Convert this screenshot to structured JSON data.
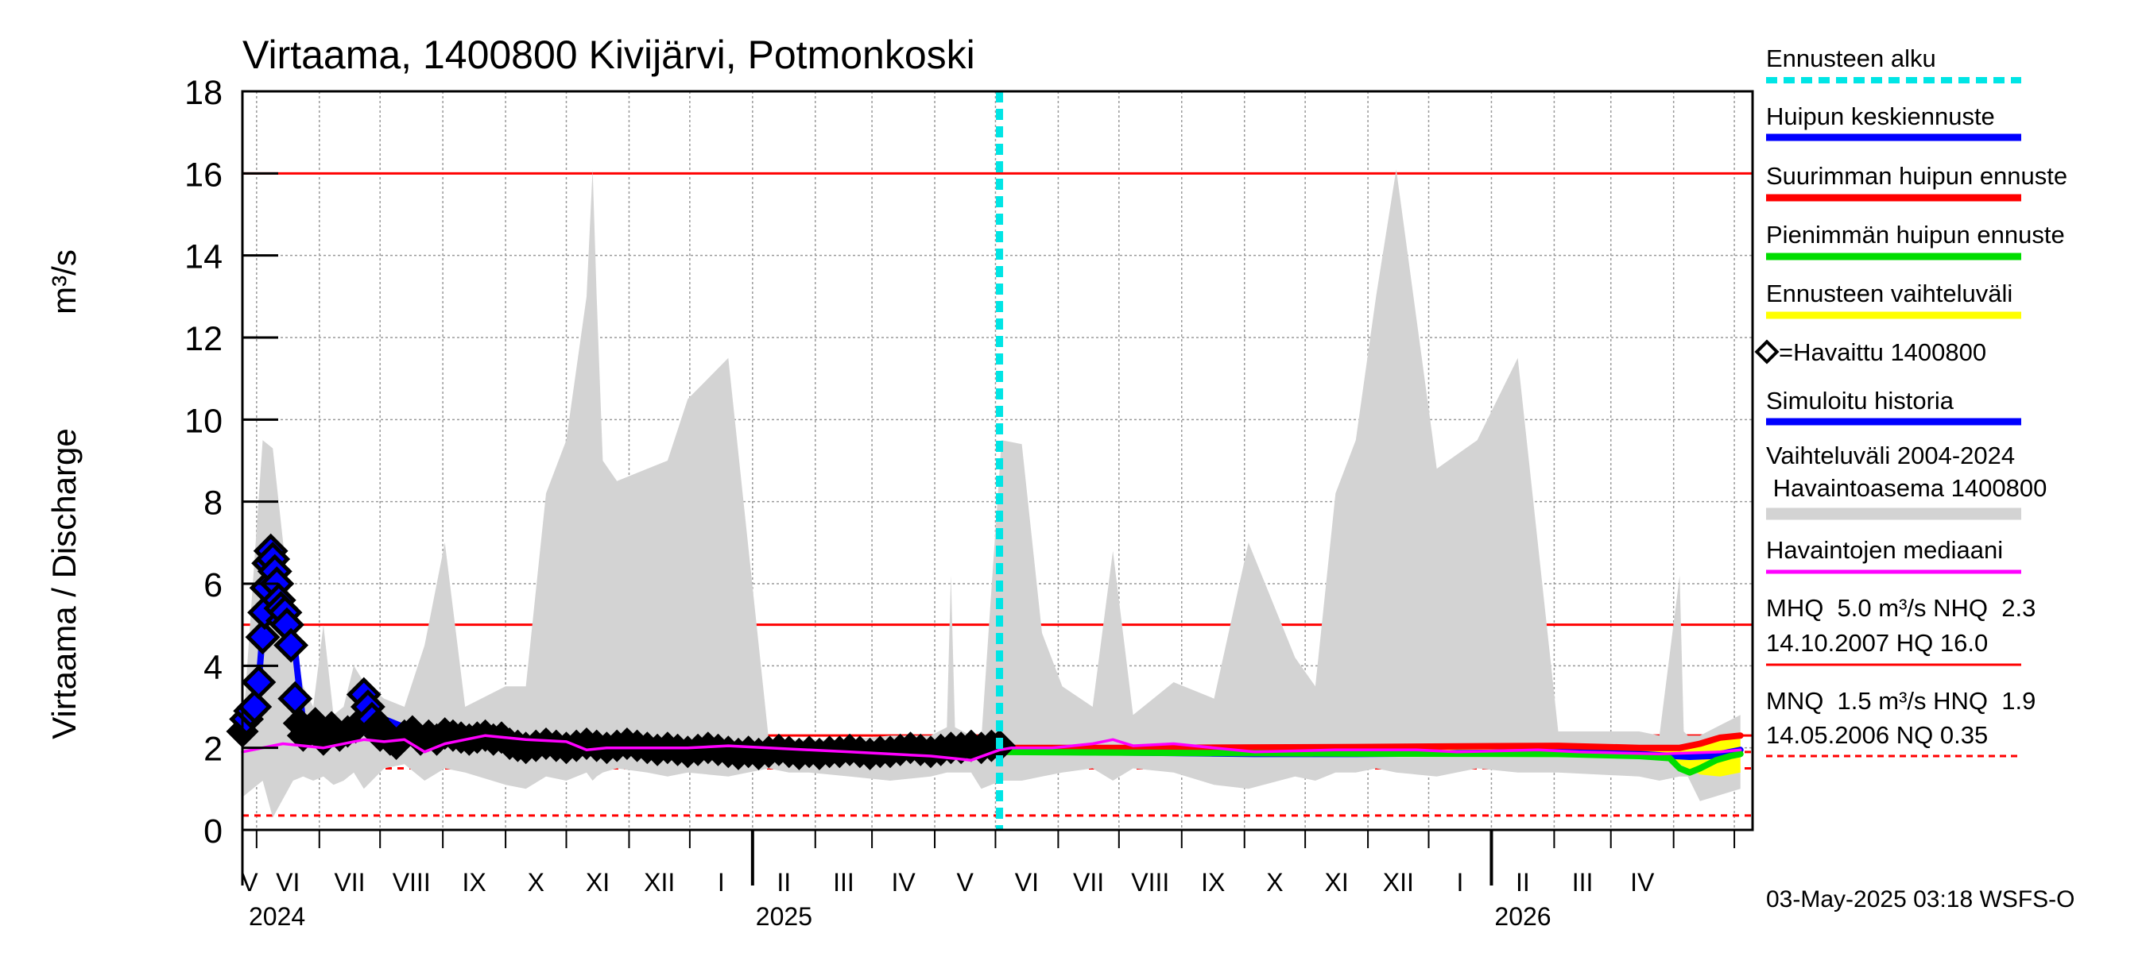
{
  "chart_data": {
    "type": "line",
    "title": "Virtaama, 1400800 Kivijärvi, Potmonkoski",
    "ylabel": "Virtaama / Discharge",
    "yunit": "m³/s",
    "ylim": [
      0,
      18
    ],
    "yticks": [
      "0",
      "2",
      "4",
      "6",
      "8",
      "10",
      "12",
      "14",
      "16",
      "18"
    ],
    "x_start": "2024-04-24",
    "x_end": "2026-05-10",
    "months": [
      "V",
      "VI",
      "VII",
      "VIII",
      "IX",
      "X",
      "XI",
      "XII",
      "I",
      "II",
      "III",
      "IV",
      "V",
      "VI",
      "VII",
      "VIII",
      "IX",
      "X",
      "XI",
      "XII",
      "I",
      "II",
      "III",
      "IV"
    ],
    "years": [
      "2024",
      "2025",
      "2026"
    ],
    "forecast_start": "2025-05-03",
    "reference_lines": {
      "HQ": 16.0,
      "MHQ": 5.0,
      "NHQ": 2.3,
      "HNQ": 1.9,
      "MNQ": 1.5,
      "NQ": 0.35
    },
    "series": [
      {
        "name": "Vaihteluväli 2004-2024 Havaintoasema 1400800",
        "kind": "band",
        "color": "#d3d3d3",
        "x_days": [
          0,
          10,
          15,
          25,
          30,
          35,
          40,
          45,
          50,
          55,
          60,
          70,
          80,
          90,
          100,
          110,
          130,
          140,
          150,
          160,
          170,
          173,
          175,
          178,
          185,
          200,
          210,
          220,
          240,
          260,
          270,
          280,
          300,
          320,
          340,
          348,
          350,
          352,
          360,
          365,
          375,
          385,
          395,
          405,
          420,
          430,
          440,
          460,
          480,
          497,
          520,
          530,
          540,
          550,
          560,
          570,
          590,
          610,
          630,
          650,
          690,
          700,
          710,
          712,
          714,
          720,
          740
        ],
        "upper": [
          2.3,
          9.5,
          9.3,
          4.8,
          3.5,
          3.0,
          5.0,
          2.8,
          3.0,
          4.0,
          3.6,
          3.2,
          3.0,
          4.5,
          7.0,
          3.0,
          3.5,
          3.5,
          8.2,
          9.5,
          13,
          16.1,
          13,
          9,
          8.5,
          8.8,
          9,
          10.5,
          11.5,
          2.2,
          2.2,
          2.2,
          2.2,
          2.3,
          2.3,
          2.5,
          6.2,
          2.5,
          2.3,
          2.2,
          9.5,
          9.4,
          4.8,
          3.5,
          3.0,
          6.8,
          2.8,
          3.6,
          3.2,
          7.0,
          4.2,
          3.5,
          8.2,
          9.5,
          13,
          16.1,
          8.8,
          9.5,
          11.5,
          2.4,
          2.4,
          2.3,
          6.2,
          2.4,
          2.3,
          2.3,
          2.8
        ],
        "lower": [
          0.8,
          1.2,
          0.3,
          1.2,
          1.3,
          1.2,
          1.3,
          1.1,
          1.2,
          1.4,
          1.0,
          1.5,
          1.6,
          1.2,
          1.5,
          1.4,
          1.1,
          1.0,
          1.3,
          1.2,
          1.4,
          1.2,
          1.3,
          1.4,
          1.5,
          1.4,
          1.3,
          1.4,
          1.3,
          1.5,
          1.4,
          1.4,
          1.3,
          1.2,
          1.3,
          1.4,
          1.4,
          1.4,
          1.4,
          1.0,
          1.2,
          1.2,
          1.3,
          1.4,
          1.5,
          1.2,
          1.5,
          1.4,
          1.1,
          1.0,
          1.3,
          1.2,
          1.4,
          1.4,
          1.5,
          1.4,
          1.3,
          1.5,
          1.4,
          1.4,
          1.3,
          1.2,
          1.3,
          1.3,
          1.3,
          0.7,
          1.0
        ]
      },
      {
        "name": "Simuloitu historia",
        "kind": "line",
        "color": "#0000ff",
        "x_days": [
          0,
          4,
          8,
          10,
          12,
          15,
          18,
          20,
          22,
          25,
          28,
          30,
          35,
          45,
          60,
          70,
          80,
          90,
          110,
          140,
          170,
          200,
          230,
          260,
          290,
          320,
          340,
          350,
          360,
          370,
          374
        ],
        "y": [
          2.4,
          2.7,
          3.6,
          4.8,
          6.3,
          6.8,
          6.0,
          5.5,
          5.3,
          4.8,
          3.5,
          2.6,
          2.4,
          2.3,
          2.4,
          2.7,
          2.5,
          2.3,
          2.2,
          2.0,
          1.95,
          1.95,
          1.9,
          1.85,
          1.8,
          1.8,
          1.85,
          1.9,
          1.95,
          2.0,
          2.0
        ]
      },
      {
        "name": "Havaittu 1400800",
        "kind": "markers",
        "color": "#000000",
        "x_days": [
          0,
          2,
          4,
          6,
          8,
          10,
          11,
          12,
          13,
          14,
          15,
          16,
          17,
          18,
          19,
          20,
          21,
          22,
          24,
          26,
          28,
          30,
          33,
          36,
          40,
          44,
          48,
          52,
          56,
          60,
          62,
          64,
          66,
          68,
          70,
          73,
          76,
          80,
          84,
          88,
          92,
          96,
          100,
          104,
          108,
          112,
          116,
          120,
          124,
          128,
          132,
          136,
          140,
          145,
          150,
          155,
          160,
          165,
          170,
          175,
          180,
          185,
          190,
          195,
          200,
          205,
          210,
          215,
          220,
          225,
          230,
          235,
          240,
          245,
          250,
          255,
          260,
          265,
          270,
          275,
          280,
          285,
          290,
          295,
          300,
          305,
          310,
          315,
          320,
          325,
          330,
          335,
          340,
          345,
          350,
          355,
          360,
          365,
          370,
          374
        ],
        "y": [
          2.4,
          2.7,
          2.9,
          3.0,
          3.6,
          4.7,
          5.3,
          5.9,
          6.5,
          6.8,
          6.6,
          6.3,
          6.0,
          5.6,
          5.4,
          5.1,
          5.3,
          5.0,
          4.5,
          3.2,
          2.6,
          2.3,
          2.4,
          2.6,
          2.2,
          2.5,
          2.3,
          2.4,
          2.5,
          3.3,
          3.0,
          2.7,
          2.5,
          2.3,
          2.4,
          2.2,
          2.1,
          2.3,
          2.4,
          2.2,
          2.3,
          2.2,
          2.35,
          2.3,
          2.25,
          2.2,
          2.25,
          2.3,
          2.2,
          2.25,
          2.1,
          2.05,
          2.0,
          2.05,
          2.1,
          2.05,
          2.0,
          2.05,
          2.1,
          2.05,
          2.0,
          2.05,
          2.1,
          2.05,
          2.0,
          1.95,
          2.0,
          1.95,
          1.9,
          1.95,
          2.0,
          1.95,
          1.9,
          1.85,
          1.9,
          1.85,
          1.9,
          1.95,
          1.9,
          1.85,
          1.9,
          1.85,
          1.9,
          1.9,
          1.95,
          1.9,
          1.85,
          1.9,
          1.9,
          1.95,
          2.0,
          1.95,
          1.9,
          1.95,
          2.0,
          2.0,
          2.05,
          2.0,
          2.05,
          2.05
        ]
      },
      {
        "name": "Havaintojen mediaani",
        "kind": "line",
        "color": "#ff00ff",
        "x_days": [
          0,
          20,
          40,
          60,
          70,
          80,
          90,
          100,
          110,
          120,
          140,
          160,
          170,
          180,
          200,
          220,
          240,
          260,
          280,
          300,
          320,
          340,
          360,
          374,
          380,
          400,
          420,
          430,
          440,
          460,
          480,
          500,
          540,
          560,
          580,
          600,
          640,
          660,
          700,
          730,
          740
        ],
        "y": [
          1.9,
          2.1,
          2.0,
          2.2,
          2.15,
          2.2,
          1.9,
          2.1,
          2.2,
          2.3,
          2.2,
          2.15,
          1.95,
          2.0,
          2.0,
          2.0,
          2.05,
          2.0,
          1.95,
          1.9,
          1.85,
          1.8,
          1.7,
          1.95,
          2.0,
          2.0,
          2.1,
          2.2,
          2.05,
          2.1,
          2.0,
          1.9,
          1.95,
          1.95,
          1.95,
          1.9,
          1.95,
          1.9,
          1.85,
          1.9,
          1.95
        ]
      },
      {
        "name": "Huipun keskiennuste",
        "kind": "line",
        "color": "#0000ff",
        "x_days": [
          374,
          400,
          450,
          500,
          550,
          600,
          650,
          680,
          700,
          715,
          725,
          735,
          740
        ],
        "y": [
          1.95,
          1.9,
          1.88,
          1.85,
          1.85,
          1.87,
          1.9,
          1.88,
          1.82,
          1.78,
          1.8,
          1.9,
          1.95
        ]
      },
      {
        "name": "Suurimman huipun ennuste",
        "kind": "line",
        "color": "#ff0000",
        "x_days": [
          374,
          450,
          550,
          650,
          690,
          710,
          720,
          730,
          740
        ],
        "y": [
          2.0,
          2.0,
          2.02,
          2.05,
          2.0,
          2.0,
          2.1,
          2.25,
          2.3
        ]
      },
      {
        "name": "Pienimmän huipun ennuste",
        "kind": "line",
        "color": "#00dd00",
        "x_days": [
          374,
          450,
          550,
          650,
          690,
          705,
          710,
          715,
          720,
          728,
          735,
          740
        ],
        "y": [
          1.9,
          1.88,
          1.86,
          1.85,
          1.8,
          1.75,
          1.5,
          1.4,
          1.5,
          1.7,
          1.8,
          1.85
        ]
      },
      {
        "name": "Ennusteen vaihteluväli",
        "kind": "band",
        "color": "#ffff00",
        "x_days": [
          374,
          500,
          650,
          700,
          710,
          720,
          730,
          740
        ],
        "upper": [
          2.0,
          2.0,
          2.05,
          2.0,
          2.05,
          2.15,
          2.25,
          2.3
        ],
        "lower": [
          1.9,
          1.86,
          1.85,
          1.8,
          1.6,
          1.35,
          1.3,
          1.4
        ]
      }
    ],
    "legend": {
      "forecast_start": "Ennusteen alku",
      "mean_peak": "Huipun keskiennuste",
      "max_peak": "Suurimman huipun ennuste",
      "min_peak": "Pienimmän huipun ennuste",
      "forecast_range": "Ennusteen vaihteluväli",
      "observed": "=Havaittu 1400800",
      "simulated": "Simuloitu historia",
      "range_line1": "Vaihteluväli 2004-2024",
      "range_line2": " Havaintoasema 1400800",
      "median": "Havaintojen mediaani",
      "mhq_line1": "MHQ  5.0 m³/s NHQ  2.3",
      "mhq_line2": "14.10.2007 HQ 16.0",
      "mnq_line1": "MNQ  1.5 m³/s HNQ  1.9",
      "mnq_line2": "14.05.2006 NQ 0.35"
    },
    "colors": {
      "forecast_start": "#00e5e5",
      "mean_peak": "#0000ff",
      "max_peak": "#ff0000",
      "min_peak": "#00dd00",
      "forecast_range": "#ffff00",
      "simulated": "#0000ff",
      "range": "#d3d3d3",
      "median": "#ff00ff",
      "hq_line": "#ff0000",
      "nq_line": "#ff0000"
    },
    "footer": "03-May-2025 03:18 WSFS-O"
  }
}
